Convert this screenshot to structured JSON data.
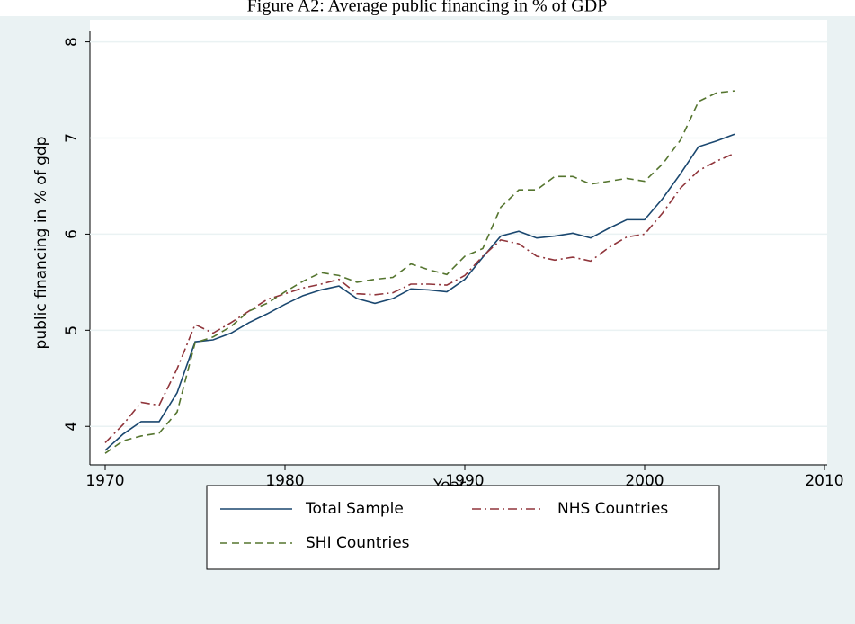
{
  "chart_data": {
    "type": "line",
    "title": "Figure A2: Average public financing in % of GDP",
    "x_label": "Year",
    "y_label": "public financing in % of gdp",
    "x": [
      1970,
      1971,
      1972,
      1973,
      1974,
      1975,
      1976,
      1977,
      1978,
      1979,
      1980,
      1981,
      1982,
      1983,
      1984,
      1985,
      1986,
      1987,
      1988,
      1989,
      1990,
      1991,
      1992,
      1993,
      1994,
      1995,
      1996,
      1997,
      1998,
      1999,
      2000,
      2001,
      2002,
      2003,
      2004,
      2005
    ],
    "series": [
      {
        "name": "Total Sample",
        "color": "#1a476f",
        "dash": "solid",
        "values": [
          3.75,
          3.92,
          4.05,
          4.05,
          4.35,
          4.88,
          4.9,
          4.97,
          5.08,
          5.17,
          5.27,
          5.36,
          5.42,
          5.46,
          5.33,
          5.28,
          5.33,
          5.43,
          5.42,
          5.4,
          5.53,
          5.76,
          5.98,
          6.03,
          5.96,
          5.98,
          6.01,
          5.96,
          6.06,
          6.15,
          6.15,
          6.37,
          6.63,
          6.91,
          6.97,
          7.04
        ]
      },
      {
        "name": "NHS Countries",
        "color": "#90353b",
        "dash": "dashdot",
        "values": [
          3.83,
          4.02,
          4.25,
          4.22,
          4.6,
          5.06,
          4.97,
          5.08,
          5.2,
          5.32,
          5.38,
          5.44,
          5.48,
          5.53,
          5.38,
          5.37,
          5.39,
          5.48,
          5.48,
          5.47,
          5.57,
          5.77,
          5.94,
          5.9,
          5.77,
          5.73,
          5.76,
          5.72,
          5.86,
          5.97,
          6.0,
          6.22,
          6.48,
          6.66,
          6.76,
          6.84
        ]
      },
      {
        "name": "SHI Countries",
        "color": "#55752f",
        "dash": "dash",
        "values": [
          3.72,
          3.85,
          3.9,
          3.93,
          4.15,
          4.87,
          4.93,
          5.04,
          5.2,
          5.28,
          5.4,
          5.51,
          5.6,
          5.57,
          5.5,
          5.53,
          5.55,
          5.69,
          5.63,
          5.58,
          5.77,
          5.85,
          6.28,
          6.46,
          6.46,
          6.6,
          6.6,
          6.52,
          6.55,
          6.58,
          6.55,
          6.73,
          6.98,
          7.38,
          7.47,
          7.49
        ]
      }
    ],
    "xlim": [
      1969.15,
      2010.15
    ],
    "xticks": [
      1970,
      1980,
      1990,
      2000,
      2010
    ],
    "ylim": [
      3.6,
      8.23
    ],
    "yticks": [
      4,
      5,
      6,
      7,
      8
    ],
    "grid": true,
    "legend_position": "bottom"
  }
}
